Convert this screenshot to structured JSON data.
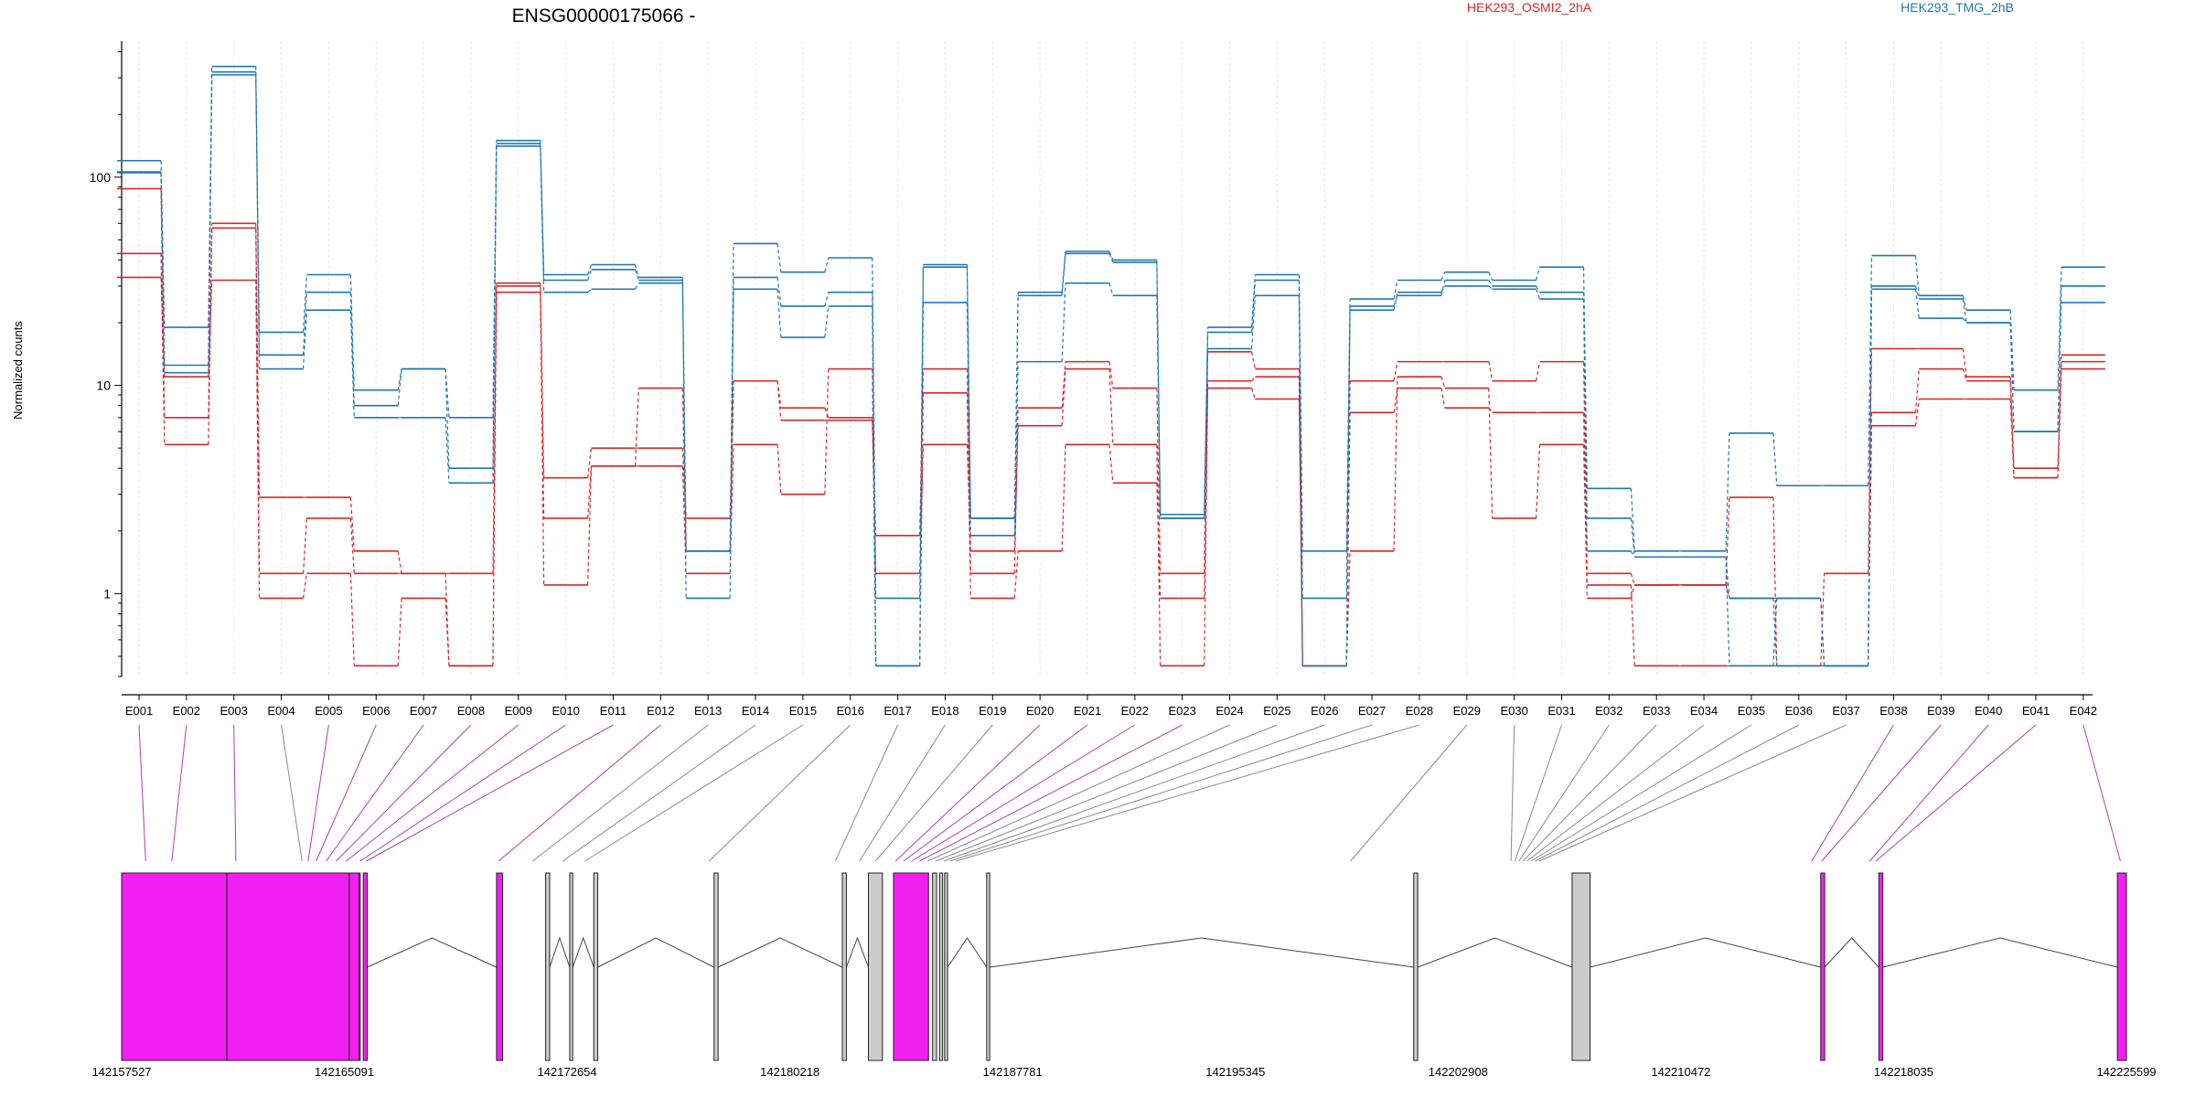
{
  "title": "ENSG00000175066 -",
  "ylabel": "Normalized counts",
  "legend": [
    {
      "name": "HEK293_OSMI2_2hA",
      "color": "#d62728"
    },
    {
      "name": "HEK293_TMG_2hB",
      "color": "#1f77b4"
    }
  ],
  "chart_data": {
    "type": "line",
    "title": "ENSG00000175066 -",
    "ylabel": "Normalized counts",
    "yscale": "log",
    "ylim": [
      0.4,
      450
    ],
    "yticks": [
      "1",
      "10",
      "100"
    ],
    "categories": [
      "E001",
      "E002",
      "E003",
      "E004",
      "E005",
      "E006",
      "E007",
      "E008",
      "E009",
      "E010",
      "E011",
      "E012",
      "E013",
      "E014",
      "E015",
      "E016",
      "E017",
      "E018",
      "E019",
      "E020",
      "E021",
      "E022",
      "E023",
      "E024",
      "E025",
      "E026",
      "E027",
      "E028",
      "E029",
      "E030",
      "E031",
      "E032",
      "E033",
      "E034",
      "E035",
      "E036",
      "E037",
      "E038",
      "E039",
      "E040",
      "E041",
      "E042"
    ],
    "series": [
      {
        "name": "HEK293_OSMI2_2hA",
        "group": "HEK293_OSMI2_2hA",
        "color": "#d62728",
        "values": [
          88,
          7,
          60,
          2.9,
          2.9,
          1.6,
          1.25,
          1.25,
          31,
          3.6,
          5,
          5,
          2.3,
          10.5,
          7.8,
          7,
          1.9,
          12,
          1.25,
          7.8,
          13,
          9.7,
          1.25,
          14.5,
          12,
          0.45,
          10.5,
          13,
          13,
          10.5,
          13,
          1.25,
          1.1,
          1.1,
          2.9,
          0.45,
          1.25,
          15,
          15,
          11,
          4,
          14
        ]
      },
      {
        "name": "HEK293_OSMI2_2hA",
        "group": "HEK293_OSMI2_2hA",
        "color": "#d62728",
        "values": [
          43,
          5.2,
          57,
          1.25,
          2.3,
          1.25,
          1.25,
          0.45,
          30,
          1.1,
          4.1,
          4.1,
          1.25,
          5.2,
          3,
          12,
          0.45,
          9.2,
          0.95,
          1.6,
          5.2,
          3.4,
          0.95,
          10.5,
          11,
          0.45,
          7.4,
          9.7,
          7.8,
          7.4,
          7.4,
          1.1,
          0.45,
          0.45,
          0.45,
          0.45,
          0.45,
          6.4,
          8.6,
          8.6,
          3.6,
          12
        ]
      },
      {
        "name": "HEK293_OSMI2_2hA",
        "group": "HEK293_OSMI2_2hA",
        "color": "#d62728",
        "values": [
          33,
          11,
          32,
          0.95,
          1.25,
          0.45,
          0.95,
          0.45,
          28,
          2.3,
          4.1,
          9.7,
          1.6,
          10.5,
          6.8,
          6.8,
          1.25,
          5.2,
          1.6,
          6.4,
          12,
          5.2,
          0.45,
          9.7,
          8.6,
          0.45,
          1.6,
          11,
          9.7,
          2.3,
          5.2,
          0.95,
          1.1,
          1.1,
          0.95,
          0.95,
          0.45,
          7.4,
          12,
          10.5,
          3.6,
          13
        ]
      },
      {
        "name": "HEK293_TMG_2hB",
        "group": "HEK293_TMG_2hB",
        "color": "#1f77b4",
        "values": [
          120,
          19,
          340,
          18,
          34,
          9.5,
          12,
          7,
          150,
          34,
          38,
          33,
          1.6,
          48,
          35,
          41,
          0.95,
          38,
          2.3,
          28,
          44,
          40,
          2.4,
          19,
          34,
          1.6,
          26,
          32,
          35,
          32,
          37,
          3.2,
          1.6,
          1.6,
          5.9,
          3.3,
          3.3,
          42,
          27,
          23,
          9.5,
          37
        ]
      },
      {
        "name": "HEK293_TMG_2hB",
        "group": "HEK293_TMG_2hB",
        "color": "#1f77b4",
        "values": [
          106,
          12.5,
          310,
          14,
          28,
          8,
          12,
          4,
          145,
          32,
          36,
          32,
          0.95,
          33,
          24,
          28,
          0.45,
          37,
          2.3,
          27,
          43,
          39,
          2.3,
          18,
          32,
          0.95,
          24,
          27,
          32,
          30,
          28,
          2.3,
          1.5,
          1.5,
          0.95,
          0.45,
          0.45,
          30,
          26,
          20,
          6,
          30
        ]
      },
      {
        "name": "HEK293_TMG_2hB",
        "group": "HEK293_TMG_2hB",
        "color": "#1f77b4",
        "values": [
          105,
          11.5,
          320,
          12,
          23,
          7,
          7,
          3.4,
          141,
          28,
          29,
          31,
          1.6,
          29,
          17,
          24,
          0.45,
          25,
          1.9,
          13,
          31,
          27,
          2.3,
          15,
          27,
          0.45,
          23,
          28,
          30,
          29,
          26,
          1.6,
          1.5,
          1.5,
          0.45,
          0.95,
          0.45,
          29,
          21,
          20,
          6,
          25
        ]
      }
    ],
    "gene_model": {
      "coordinate_ticks": [
        "142157527",
        "142165091",
        "142172654",
        "142180218",
        "142187781",
        "142195345",
        "142202908",
        "142210472",
        "142218035",
        "142225599"
      ],
      "range": [
        142157527,
        142225599
      ],
      "highlight_color": "#f21ff2",
      "neutral_color": "#cccccc"
    }
  }
}
